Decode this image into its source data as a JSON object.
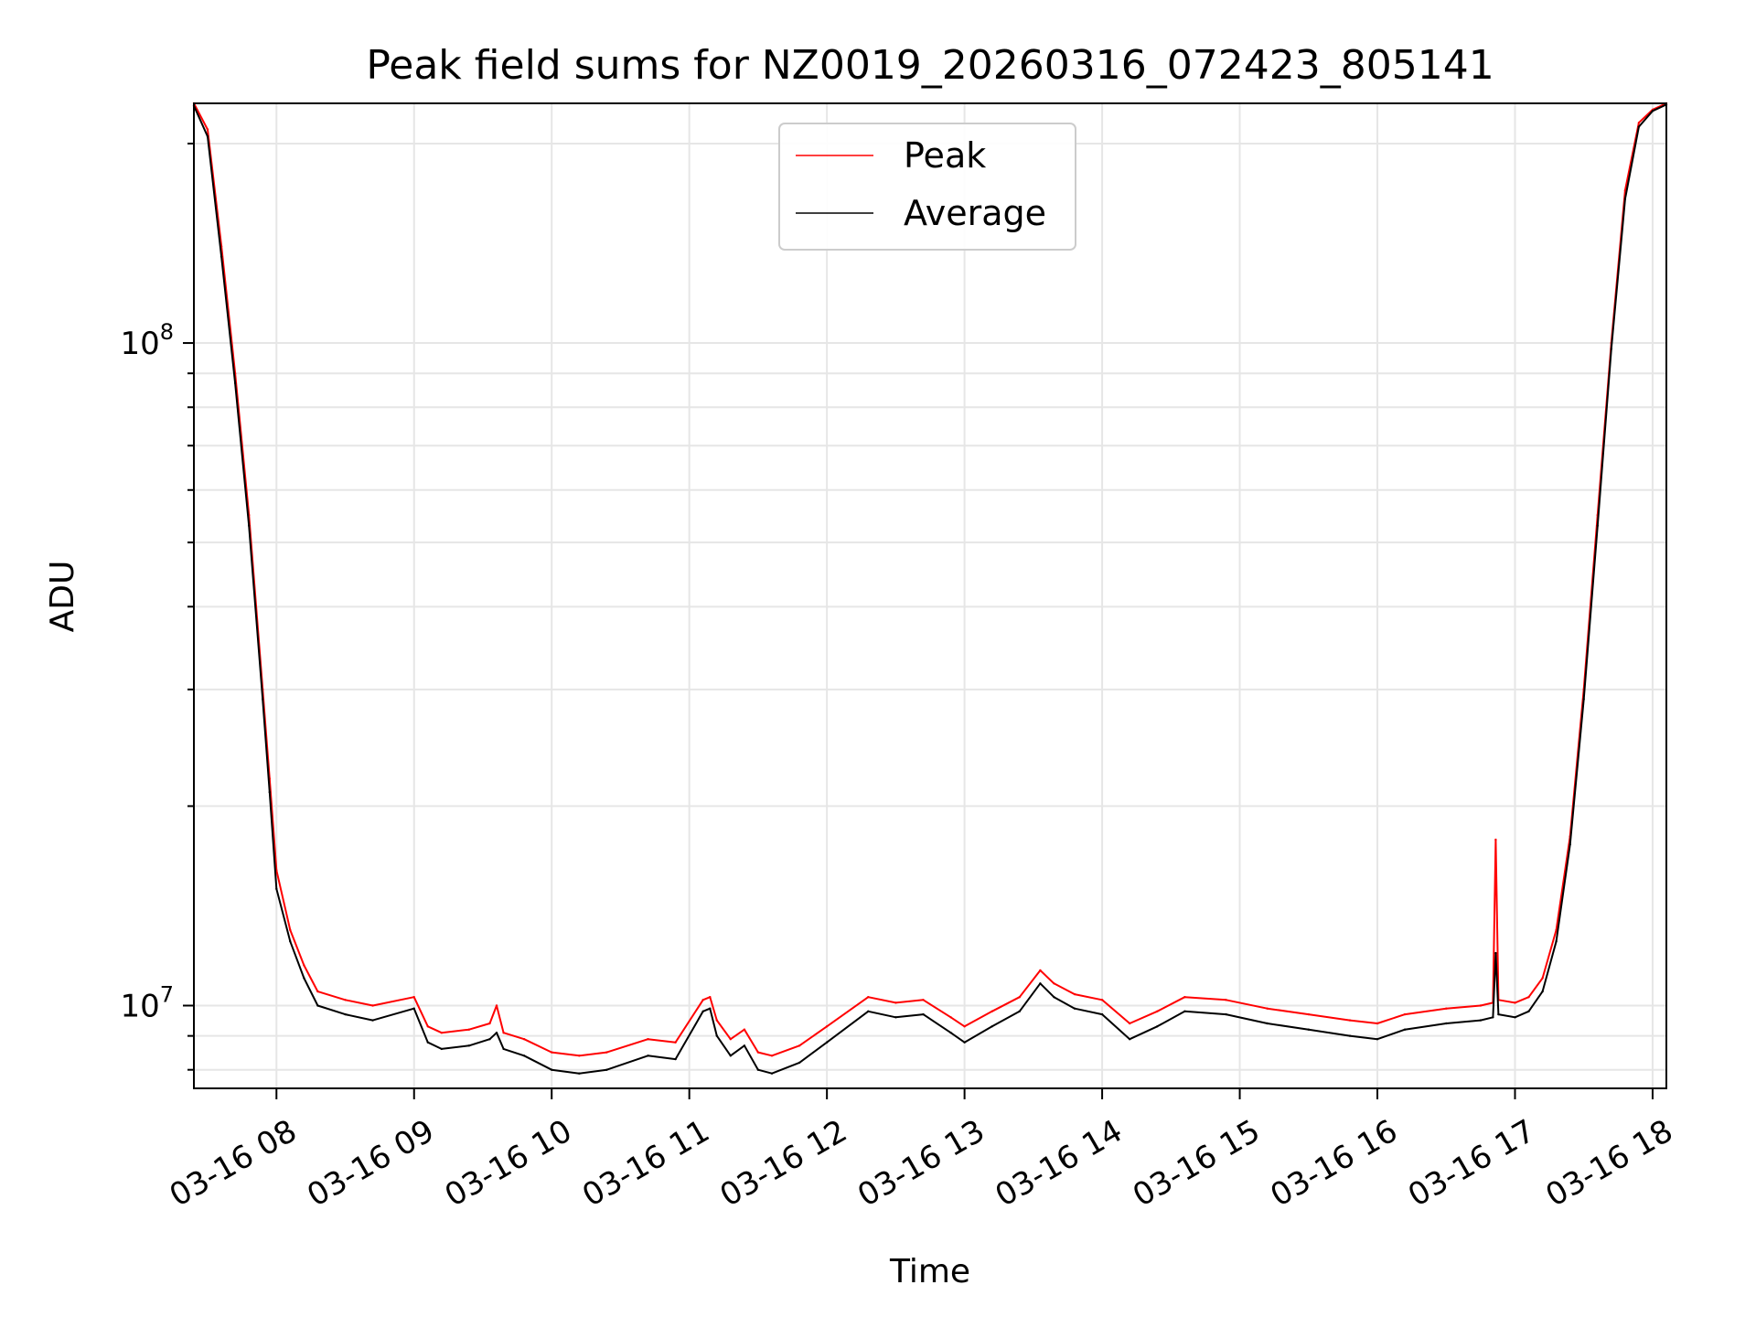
{
  "chart_data": {
    "type": "line",
    "title": "Peak field sums for NZ0019_20260316_072423_805141",
    "xlabel": "Time",
    "ylabel": "ADU",
    "yscale": "log",
    "xlim_hours": [
      7.4,
      18.1
    ],
    "ylim": [
      7500000.0,
      230000000.0
    ],
    "grid": true,
    "legend_position": "upper-center",
    "x_ticks": [
      {
        "hour": 8,
        "label": "03-16 08"
      },
      {
        "hour": 9,
        "label": "03-16 09"
      },
      {
        "hour": 10,
        "label": "03-16 10"
      },
      {
        "hour": 11,
        "label": "03-16 11"
      },
      {
        "hour": 12,
        "label": "03-16 12"
      },
      {
        "hour": 13,
        "label": "03-16 13"
      },
      {
        "hour": 14,
        "label": "03-16 14"
      },
      {
        "hour": 15,
        "label": "03-16 15"
      },
      {
        "hour": 16,
        "label": "03-16 16"
      },
      {
        "hour": 17,
        "label": "03-16 17"
      },
      {
        "hour": 18,
        "label": "03-16 18"
      }
    ],
    "y_ticks": [
      {
        "value": 10000000,
        "base": "10",
        "exp": "7"
      },
      {
        "value": 100000000,
        "base": "10",
        "exp": "8"
      }
    ],
    "series": [
      {
        "name": "Peak",
        "color": "#ff0000",
        "x_hours": [
          7.4,
          7.5,
          7.6,
          7.7,
          7.8,
          7.9,
          7.95,
          8.0,
          8.1,
          8.2,
          8.3,
          8.5,
          8.7,
          9.0,
          9.1,
          9.2,
          9.4,
          9.55,
          9.6,
          9.65,
          9.8,
          10.0,
          10.2,
          10.4,
          10.7,
          10.9,
          11.1,
          11.15,
          11.2,
          11.3,
          11.4,
          11.5,
          11.6,
          11.8,
          12.0,
          12.3,
          12.5,
          12.7,
          12.9,
          13.0,
          13.2,
          13.4,
          13.55,
          13.65,
          13.8,
          14.0,
          14.2,
          14.4,
          14.6,
          14.9,
          15.2,
          15.5,
          15.8,
          16.0,
          16.2,
          16.5,
          16.75,
          16.84,
          16.86,
          16.88,
          17.0,
          17.1,
          17.2,
          17.3,
          17.4,
          17.5,
          17.6,
          17.7,
          17.8,
          17.9,
          18.0,
          18.1
        ],
        "values": [
          230000000,
          210000000,
          140000000,
          90000000,
          55000000,
          30000000,
          22000000,
          16000000,
          13000000,
          11500000,
          10500000,
          10200000,
          10000000,
          10300000,
          9300000,
          9100000,
          9200000,
          9400000,
          10000000,
          9100000,
          8900000,
          8500000,
          8400000,
          8500000,
          8900000,
          8800000,
          10200000,
          10300000,
          9500000,
          8900000,
          9200000,
          8500000,
          8400000,
          8700000,
          9300000,
          10300000,
          10100000,
          10200000,
          9600000,
          9300000,
          9800000,
          10300000,
          11300000,
          10800000,
          10400000,
          10200000,
          9400000,
          9800000,
          10300000,
          10200000,
          9900000,
          9700000,
          9500000,
          9400000,
          9700000,
          9900000,
          10000000,
          10100000,
          17800000,
          10200000,
          10100000,
          10300000,
          11000000,
          13000000,
          18000000,
          30000000,
          55000000,
          100000000,
          170000000,
          215000000,
          225000000,
          230000000
        ]
      },
      {
        "name": "Average",
        "color": "#000000",
        "x_hours": [
          7.4,
          7.5,
          7.6,
          7.7,
          7.8,
          7.9,
          7.95,
          8.0,
          8.1,
          8.2,
          8.3,
          8.5,
          8.7,
          9.0,
          9.1,
          9.2,
          9.4,
          9.55,
          9.6,
          9.65,
          9.8,
          10.0,
          10.2,
          10.4,
          10.7,
          10.9,
          11.1,
          11.15,
          11.2,
          11.3,
          11.4,
          11.5,
          11.6,
          11.8,
          12.0,
          12.3,
          12.5,
          12.7,
          12.9,
          13.0,
          13.2,
          13.4,
          13.55,
          13.65,
          13.8,
          14.0,
          14.2,
          14.4,
          14.6,
          14.9,
          15.2,
          15.5,
          15.8,
          16.0,
          16.2,
          16.5,
          16.75,
          16.84,
          16.86,
          16.88,
          17.0,
          17.1,
          17.2,
          17.3,
          17.4,
          17.5,
          17.6,
          17.7,
          17.8,
          17.9,
          18.0,
          18.1
        ],
        "values": [
          228000000,
          205000000,
          135000000,
          87000000,
          53000000,
          29000000,
          21000000,
          15000000,
          12500000,
          11000000,
          10000000,
          9700000,
          9500000,
          9900000,
          8800000,
          8600000,
          8700000,
          8900000,
          9100000,
          8600000,
          8400000,
          8000000,
          7900000,
          8000000,
          8400000,
          8300000,
          9800000,
          9900000,
          9000000,
          8400000,
          8700000,
          8000000,
          7900000,
          8200000,
          8800000,
          9800000,
          9600000,
          9700000,
          9100000,
          8800000,
          9300000,
          9800000,
          10800000,
          10300000,
          9900000,
          9700000,
          8900000,
          9300000,
          9800000,
          9700000,
          9400000,
          9200000,
          9000000,
          8900000,
          9200000,
          9400000,
          9500000,
          9600000,
          12000000,
          9700000,
          9600000,
          9800000,
          10500000,
          12500000,
          17500000,
          29000000,
          53000000,
          98000000,
          165000000,
          212000000,
          224000000,
          229000000
        ]
      }
    ]
  }
}
